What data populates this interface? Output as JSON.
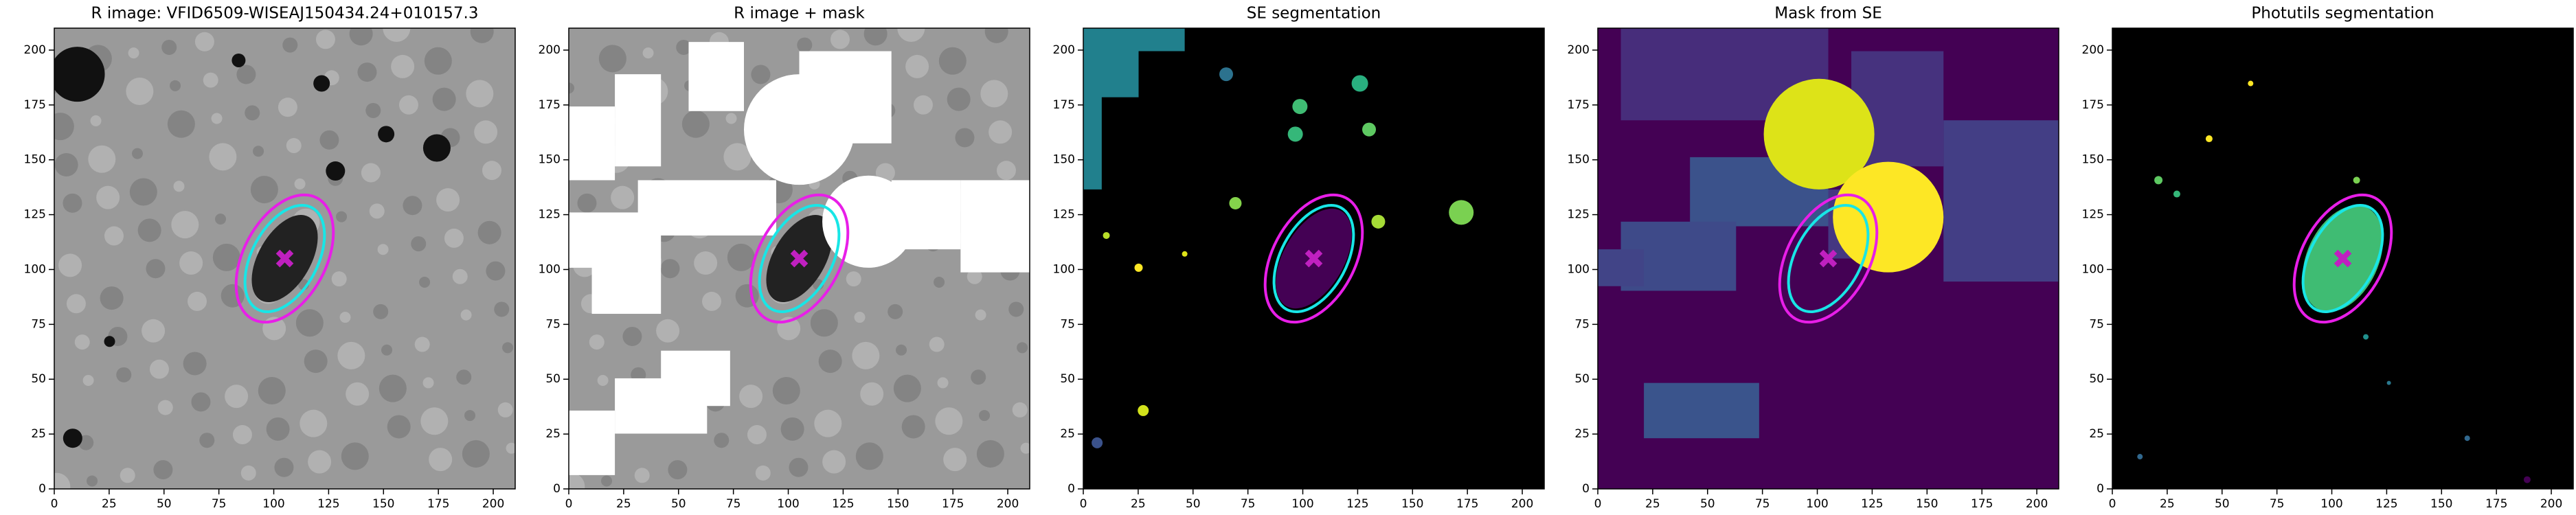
{
  "chart_data": [
    {
      "type": "image",
      "title": "R image: VFID6509-WISEAJ150434.24+010157.3",
      "xlim": [
        0,
        210
      ],
      "ylim": [
        0,
        210
      ],
      "xticks": [
        0,
        25,
        50,
        75,
        100,
        125,
        150,
        175,
        200
      ],
      "yticks": [
        0,
        25,
        50,
        75,
        100,
        125,
        150,
        175,
        200
      ]
    },
    {
      "type": "image",
      "title": "R image + mask",
      "xlim": [
        0,
        210
      ],
      "ylim": [
        0,
        210
      ],
      "xticks": [
        0,
        25,
        50,
        75,
        100,
        125,
        150,
        175,
        200
      ],
      "yticks": [
        0,
        25,
        50,
        75,
        100,
        125,
        150,
        175,
        200
      ]
    },
    {
      "type": "image",
      "title": "SE segmentation",
      "xlim": [
        0,
        210
      ],
      "ylim": [
        0,
        210
      ],
      "xticks": [
        0,
        25,
        50,
        75,
        100,
        125,
        150,
        175,
        200
      ],
      "yticks": [
        0,
        25,
        50,
        75,
        100,
        125,
        150,
        175,
        200
      ]
    },
    {
      "type": "image",
      "title": "Mask from SE",
      "xlim": [
        0,
        210
      ],
      "ylim": [
        0,
        210
      ],
      "xticks": [
        0,
        25,
        50,
        75,
        100,
        125,
        150,
        175,
        200
      ],
      "yticks": [
        0,
        25,
        50,
        75,
        100,
        125,
        150,
        175,
        200
      ]
    },
    {
      "type": "image",
      "title": "Photutils segmentation",
      "xlim": [
        0,
        210
      ],
      "ylim": [
        0,
        210
      ],
      "xticks": [
        0,
        25,
        50,
        75,
        100,
        125,
        150,
        175,
        200
      ],
      "yticks": [
        0,
        25,
        50,
        75,
        100,
        125,
        150,
        175,
        200
      ]
    }
  ]
}
